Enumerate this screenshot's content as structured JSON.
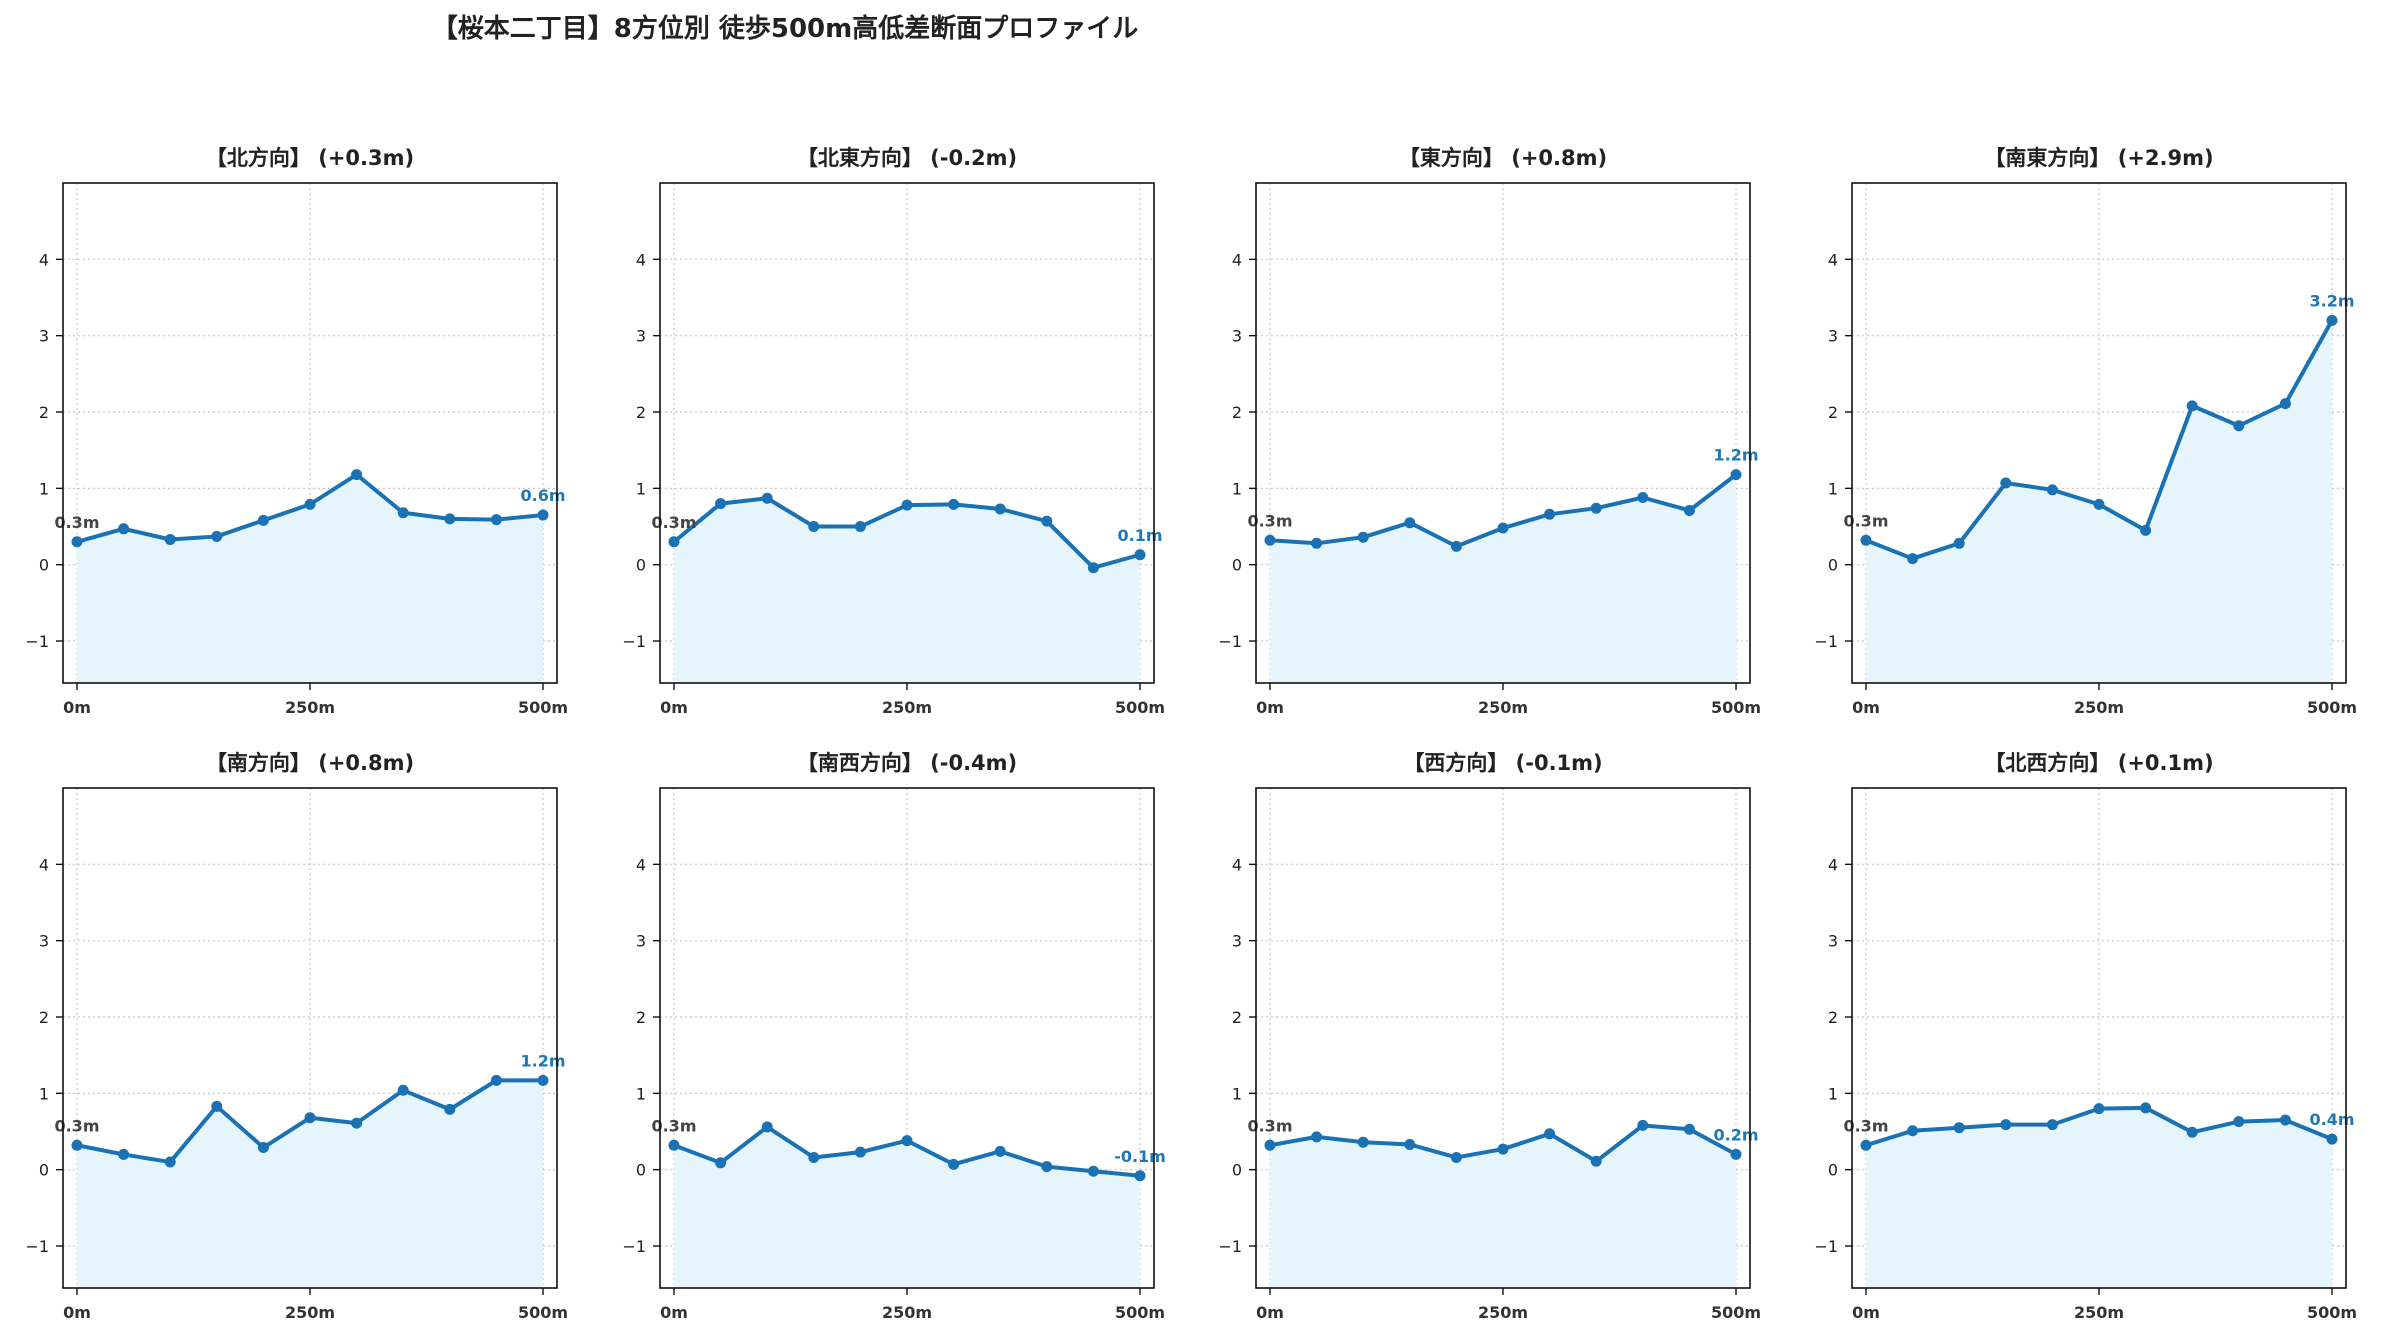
{
  "title": "【桜本二丁目】8方位別 徒歩500m高低差断面プロファイル",
  "colors": {
    "line": "#1a72b5",
    "fill": "#e6f4fb",
    "end_label": "#1f77b4",
    "start_label": "#444444",
    "grid": "#c8c8c8"
  },
  "chart_data": [
    {
      "type": "area",
      "title": "【北方向】 (+0.3m)",
      "xticks": [
        "0m",
        "250m",
        "500m"
      ],
      "yticks": [
        "−1",
        "0",
        "1",
        "2",
        "3",
        "4"
      ],
      "xlim": [
        -15,
        515
      ],
      "ylim": [
        -1.55,
        5.0
      ],
      "grid": true,
      "x": [
        0,
        50,
        100,
        150,
        200,
        250,
        300,
        350,
        400,
        450,
        500
      ],
      "values": [
        0.3,
        0.47,
        0.33,
        0.37,
        0.58,
        0.79,
        1.18,
        0.68,
        0.6,
        0.59,
        0.65
      ],
      "start_label": "0.3m",
      "end_label": "0.6m"
    },
    {
      "type": "area",
      "title": "【北東方向】 (-0.2m)",
      "xticks": [
        "0m",
        "250m",
        "500m"
      ],
      "yticks": [
        "−1",
        "0",
        "1",
        "2",
        "3",
        "4"
      ],
      "xlim": [
        -15,
        515
      ],
      "ylim": [
        -1.55,
        5.0
      ],
      "grid": true,
      "x": [
        0,
        50,
        100,
        150,
        200,
        250,
        300,
        350,
        400,
        450,
        500
      ],
      "values": [
        0.3,
        0.8,
        0.87,
        0.5,
        0.5,
        0.78,
        0.79,
        0.73,
        0.57,
        -0.04,
        0.13
      ],
      "start_label": "0.3m",
      "end_label": "0.1m"
    },
    {
      "type": "area",
      "title": "【東方向】 (+0.8m)",
      "xticks": [
        "0m",
        "250m",
        "500m"
      ],
      "yticks": [
        "−1",
        "0",
        "1",
        "2",
        "3",
        "4"
      ],
      "xlim": [
        -15,
        515
      ],
      "ylim": [
        -1.55,
        5.0
      ],
      "grid": true,
      "x": [
        0,
        50,
        100,
        150,
        200,
        250,
        300,
        350,
        400,
        450,
        500
      ],
      "values": [
        0.32,
        0.28,
        0.36,
        0.55,
        0.24,
        0.48,
        0.66,
        0.74,
        0.88,
        0.71,
        1.18
      ],
      "start_label": "0.3m",
      "end_label": "1.2m"
    },
    {
      "type": "area",
      "title": "【南東方向】 (+2.9m)",
      "xticks": [
        "0m",
        "250m",
        "500m"
      ],
      "yticks": [
        "−1",
        "0",
        "1",
        "2",
        "3",
        "4"
      ],
      "xlim": [
        -15,
        515
      ],
      "ylim": [
        -1.55,
        5.0
      ],
      "grid": true,
      "x": [
        0,
        50,
        100,
        150,
        200,
        250,
        300,
        350,
        400,
        450,
        500
      ],
      "values": [
        0.32,
        0.08,
        0.28,
        1.07,
        0.98,
        0.79,
        0.45,
        2.08,
        1.82,
        2.11,
        3.2
      ],
      "start_label": "0.3m",
      "end_label": "3.2m"
    },
    {
      "type": "area",
      "title": "【南方向】 (+0.8m)",
      "xticks": [
        "0m",
        "250m",
        "500m"
      ],
      "yticks": [
        "−1",
        "0",
        "1",
        "2",
        "3",
        "4"
      ],
      "xlim": [
        -15,
        515
      ],
      "ylim": [
        -1.55,
        5.0
      ],
      "grid": true,
      "x": [
        0,
        50,
        100,
        150,
        200,
        250,
        300,
        350,
        400,
        450,
        500
      ],
      "values": [
        0.32,
        0.2,
        0.1,
        0.83,
        0.29,
        0.68,
        0.61,
        1.04,
        0.79,
        1.17,
        1.17
      ],
      "start_label": "0.3m",
      "end_label": "1.2m"
    },
    {
      "type": "area",
      "title": "【南西方向】 (-0.4m)",
      "xticks": [
        "0m",
        "250m",
        "500m"
      ],
      "yticks": [
        "−1",
        "0",
        "1",
        "2",
        "3",
        "4"
      ],
      "xlim": [
        -15,
        515
      ],
      "ylim": [
        -1.55,
        5.0
      ],
      "grid": true,
      "x": [
        0,
        50,
        100,
        150,
        200,
        250,
        300,
        350,
        400,
        450,
        500
      ],
      "values": [
        0.32,
        0.09,
        0.56,
        0.16,
        0.23,
        0.38,
        0.07,
        0.24,
        0.04,
        -0.02,
        -0.08
      ],
      "start_label": "0.3m",
      "end_label": "-0.1m"
    },
    {
      "type": "area",
      "title": "【西方向】 (-0.1m)",
      "xticks": [
        "0m",
        "250m",
        "500m"
      ],
      "yticks": [
        "−1",
        "0",
        "1",
        "2",
        "3",
        "4"
      ],
      "xlim": [
        -15,
        515
      ],
      "ylim": [
        -1.55,
        5.0
      ],
      "grid": true,
      "x": [
        0,
        50,
        100,
        150,
        200,
        250,
        300,
        350,
        400,
        450,
        500
      ],
      "values": [
        0.32,
        0.43,
        0.36,
        0.33,
        0.16,
        0.27,
        0.47,
        0.11,
        0.58,
        0.53,
        0.2
      ],
      "start_label": "0.3m",
      "end_label": "0.2m"
    },
    {
      "type": "area",
      "title": "【北西方向】 (+0.1m)",
      "xticks": [
        "0m",
        "250m",
        "500m"
      ],
      "yticks": [
        "−1",
        "0",
        "1",
        "2",
        "3",
        "4"
      ],
      "xlim": [
        -15,
        515
      ],
      "ylim": [
        -1.55,
        5.0
      ],
      "grid": true,
      "x": [
        0,
        50,
        100,
        150,
        200,
        250,
        300,
        350,
        400,
        450,
        500
      ],
      "values": [
        0.32,
        0.51,
        0.55,
        0.59,
        0.59,
        0.8,
        0.81,
        0.49,
        0.63,
        0.65,
        0.4
      ],
      "start_label": "0.3m",
      "end_label": "0.4m"
    }
  ]
}
